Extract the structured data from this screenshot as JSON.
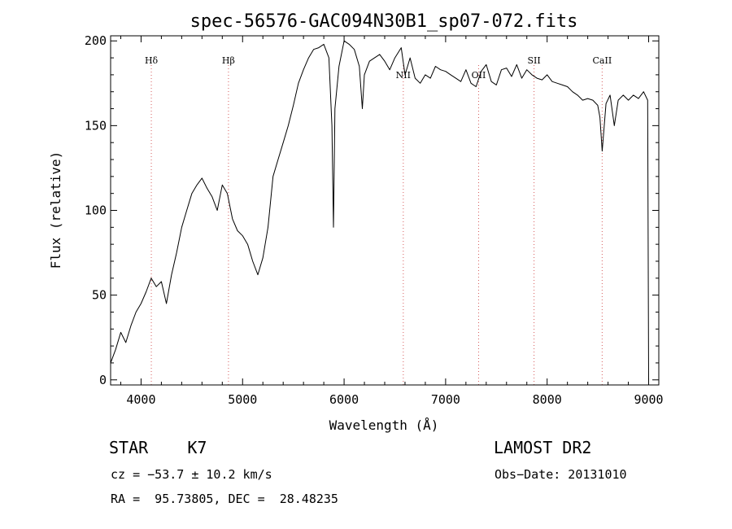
{
  "chart_data": {
    "type": "line",
    "title": "spec-56576-GAC094N30B1_sp07-072.fits",
    "xlabel": "Wavelength (Å)",
    "ylabel": "Flux (relative)",
    "xlim": [
      3700,
      9100
    ],
    "ylim": [
      -3,
      203
    ],
    "xticks": [
      4000,
      5000,
      6000,
      7000,
      8000,
      9000
    ],
    "yticks": [
      0,
      50,
      100,
      150,
      200
    ],
    "grid": false,
    "series": [
      {
        "color": "#000000",
        "x": [
          3700,
          3750,
          3800,
          3850,
          3900,
          3950,
          4000,
          4050,
          4100,
          4150,
          4200,
          4250,
          4300,
          4350,
          4400,
          4450,
          4500,
          4550,
          4600,
          4650,
          4700,
          4750,
          4800,
          4850,
          4900,
          4950,
          5000,
          5050,
          5100,
          5150,
          5200,
          5250,
          5300,
          5350,
          5400,
          5450,
          5500,
          5550,
          5600,
          5650,
          5700,
          5750,
          5800,
          5850,
          5880,
          5895,
          5910,
          5950,
          6000,
          6050,
          6100,
          6150,
          6180,
          6200,
          6250,
          6300,
          6350,
          6400,
          6450,
          6500,
          6563,
          6600,
          6650,
          6700,
          6750,
          6800,
          6850,
          6900,
          6950,
          7000,
          7050,
          7100,
          7150,
          7200,
          7250,
          7300,
          7350,
          7400,
          7450,
          7500,
          7550,
          7600,
          7650,
          7700,
          7750,
          7800,
          7850,
          7900,
          7950,
          8000,
          8050,
          8100,
          8150,
          8200,
          8250,
          8300,
          8350,
          8400,
          8450,
          8498,
          8520,
          8542,
          8580,
          8620,
          8662,
          8700,
          8750,
          8800,
          8850,
          8900,
          8950,
          8990,
          9000
        ],
        "y": [
          10,
          18,
          28,
          22,
          32,
          40,
          45,
          52,
          60,
          55,
          58,
          45,
          62,
          75,
          90,
          100,
          110,
          115,
          119,
          113,
          108,
          100,
          115,
          110,
          95,
          88,
          85,
          80,
          70,
          62,
          72,
          90,
          120,
          130,
          140,
          150,
          162,
          175,
          183,
          190,
          195,
          196,
          198,
          190,
          150,
          90,
          160,
          185,
          200,
          198,
          195,
          185,
          160,
          180,
          188,
          190,
          192,
          188,
          183,
          190,
          196,
          180,
          190,
          178,
          175,
          180,
          178,
          185,
          183,
          182,
          180,
          178,
          176,
          183,
          175,
          173,
          182,
          186,
          176,
          174,
          183,
          184,
          179,
          186,
          178,
          183,
          180,
          178,
          177,
          180,
          176,
          175,
          174,
          173,
          170,
          168,
          165,
          166,
          165,
          162,
          155,
          135,
          163,
          168,
          150,
          165,
          168,
          165,
          168,
          166,
          170,
          165,
          0
        ]
      }
    ],
    "annotations": [
      {
        "label": "Hδ",
        "x": 4101
      },
      {
        "label": "Hβ",
        "x": 4861
      },
      {
        "label": "NII",
        "x": 6583
      },
      {
        "label": "OII",
        "x": 7325
      },
      {
        "label": "SII",
        "x": 7871
      },
      {
        "label": "CaII",
        "x": 8542
      }
    ]
  },
  "info": {
    "object_class": "STAR    K7",
    "survey": "LAMOST DR2",
    "cz": "cz = −53.7 ± 10.2 km/s",
    "obs_date": "Obs−Date: 20131010",
    "coords": "RA =  95.73805, DEC =  28.48235"
  }
}
